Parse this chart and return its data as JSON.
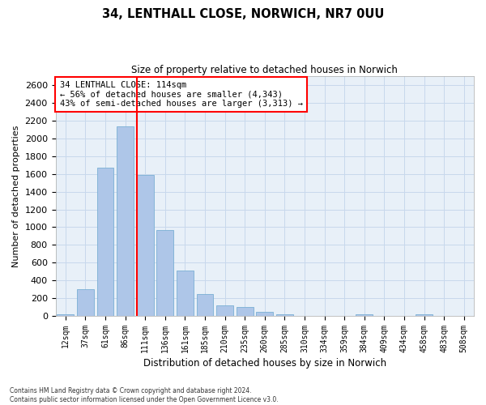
{
  "title_line1": "34, LENTHALL CLOSE, NORWICH, NR7 0UU",
  "title_line2": "Size of property relative to detached houses in Norwich",
  "xlabel": "Distribution of detached houses by size in Norwich",
  "ylabel": "Number of detached properties",
  "categories": [
    "12sqm",
    "37sqm",
    "61sqm",
    "86sqm",
    "111sqm",
    "136sqm",
    "161sqm",
    "185sqm",
    "210sqm",
    "235sqm",
    "260sqm",
    "285sqm",
    "310sqm",
    "334sqm",
    "359sqm",
    "384sqm",
    "409sqm",
    "434sqm",
    "458sqm",
    "483sqm",
    "508sqm"
  ],
  "values": [
    20,
    300,
    1670,
    2140,
    1590,
    970,
    510,
    245,
    120,
    100,
    45,
    20,
    5,
    2,
    0,
    18,
    0,
    0,
    18,
    0,
    0
  ],
  "bar_color": "#aec6e8",
  "bar_edge_color": "#7aafd4",
  "vline_color": "red",
  "vline_x_index": 4,
  "annotation_text": "34 LENTHALL CLOSE: 114sqm\n← 56% of detached houses are smaller (4,343)\n43% of semi-detached houses are larger (3,313) →",
  "annotation_box_color": "white",
  "annotation_box_edge_color": "red",
  "ylim": [
    0,
    2700
  ],
  "yticks": [
    0,
    200,
    400,
    600,
    800,
    1000,
    1200,
    1400,
    1600,
    1800,
    2000,
    2200,
    2400,
    2600
  ],
  "grid_color": "#c8d8ec",
  "bg_color": "#e8f0f8",
  "footnote1": "Contains HM Land Registry data © Crown copyright and database right 2024.",
  "footnote2": "Contains public sector information licensed under the Open Government Licence v3.0."
}
